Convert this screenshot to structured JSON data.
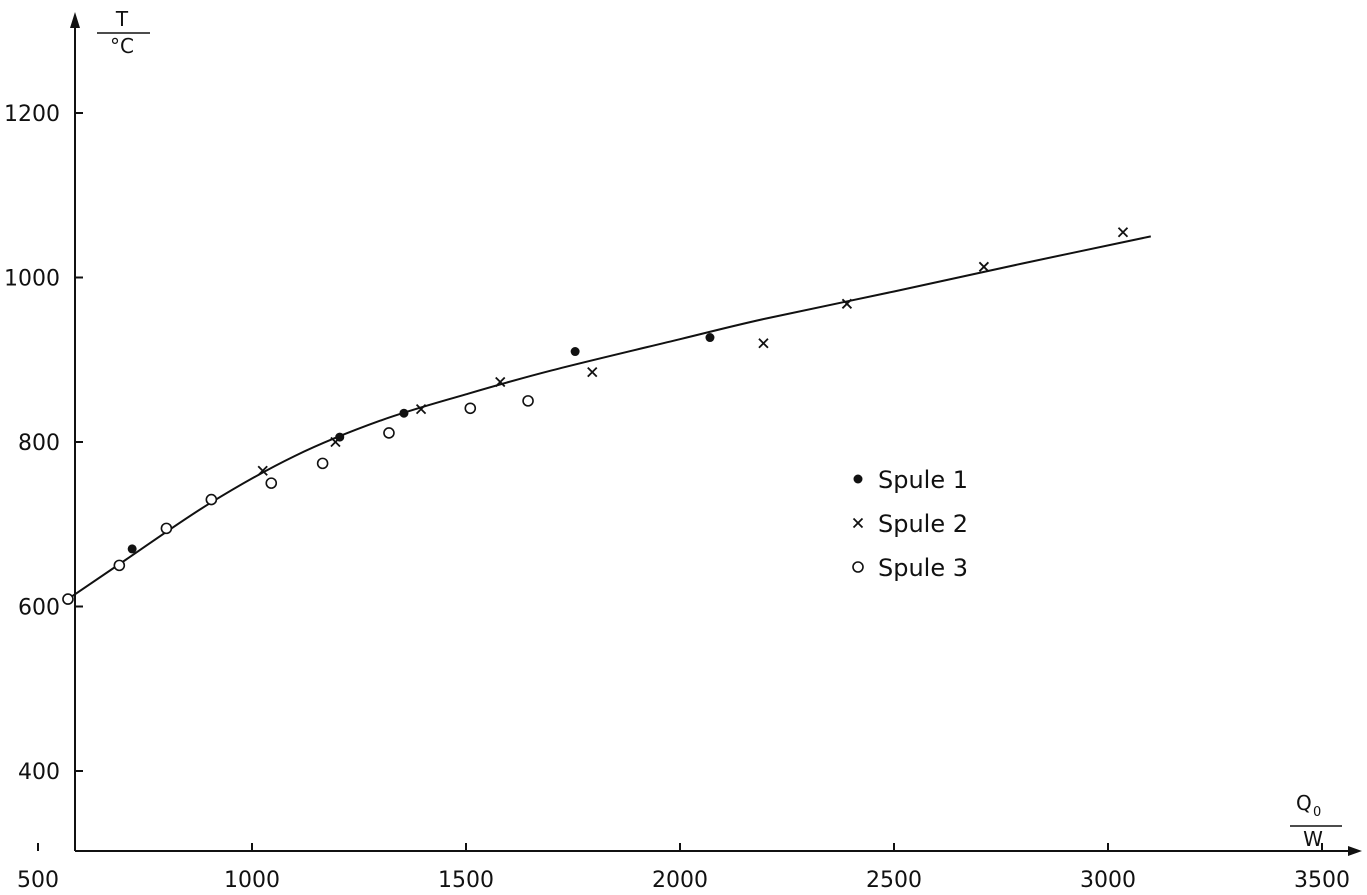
{
  "chart_data": {
    "type": "scatter",
    "title": "",
    "y_axis_label": {
      "quantity": "T",
      "unit": "°C"
    },
    "x_axis_label": {
      "quantity": "Q",
      "subscript": "0",
      "unit": "W"
    },
    "xlim": [
      500,
      3500
    ],
    "ylim": [
      300,
      1300
    ],
    "x_ticks": [
      500,
      1000,
      1500,
      2000,
      2500,
      3000,
      3500
    ],
    "y_ticks": [
      400,
      600,
      800,
      1000,
      1200
    ],
    "grid": false,
    "legend_position": "center-right",
    "series": [
      {
        "name": "Spule 1",
        "marker": "filled-circle",
        "points": [
          {
            "x": 720,
            "y": 670
          },
          {
            "x": 1205,
            "y": 806
          },
          {
            "x": 1355,
            "y": 835
          },
          {
            "x": 1755,
            "y": 910
          },
          {
            "x": 2070,
            "y": 927
          }
        ]
      },
      {
        "name": "Spule 2",
        "marker": "cross",
        "points": [
          {
            "x": 1025,
            "y": 765
          },
          {
            "x": 1195,
            "y": 800
          },
          {
            "x": 1395,
            "y": 840
          },
          {
            "x": 1580,
            "y": 873
          },
          {
            "x": 1795,
            "y": 885
          },
          {
            "x": 2195,
            "y": 920
          },
          {
            "x": 2390,
            "y": 968
          },
          {
            "x": 2710,
            "y": 1013
          },
          {
            "x": 3035,
            "y": 1055
          }
        ]
      },
      {
        "name": "Spule 3",
        "marker": "open-circle",
        "points": [
          {
            "x": 570,
            "y": 609
          },
          {
            "x": 690,
            "y": 650
          },
          {
            "x": 800,
            "y": 695
          },
          {
            "x": 905,
            "y": 730
          },
          {
            "x": 1045,
            "y": 750
          },
          {
            "x": 1165,
            "y": 774
          },
          {
            "x": 1320,
            "y": 811
          },
          {
            "x": 1510,
            "y": 841
          },
          {
            "x": 1645,
            "y": 850
          }
        ]
      }
    ],
    "fit_curve": {
      "points": [
        {
          "x": 570,
          "y": 609
        },
        {
          "x": 700,
          "y": 655
        },
        {
          "x": 900,
          "y": 725
        },
        {
          "x": 1100,
          "y": 783
        },
        {
          "x": 1300,
          "y": 826
        },
        {
          "x": 1500,
          "y": 858
        },
        {
          "x": 1700,
          "y": 887
        },
        {
          "x": 2000,
          "y": 925
        },
        {
          "x": 2200,
          "y": 950
        },
        {
          "x": 2500,
          "y": 983
        },
        {
          "x": 2800,
          "y": 1017
        },
        {
          "x": 3100,
          "y": 1050
        }
      ]
    }
  }
}
